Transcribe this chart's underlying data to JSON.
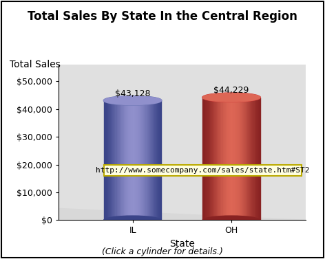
{
  "title": "Total Sales By State In the Central Region",
  "ylabel": "Total Sales",
  "xlabel": "State",
  "categories": [
    "IL",
    "OH"
  ],
  "values": [
    43128,
    44229
  ],
  "value_labels": [
    "$43,128",
    "$44,229"
  ],
  "bar_colors_main": [
    "#6672b0",
    "#cc3333"
  ],
  "bar_colors_light": [
    "#9090cc",
    "#dd6655"
  ],
  "bar_colors_dark": [
    "#3a4488",
    "#882222"
  ],
  "yticks": [
    0,
    10000,
    20000,
    30000,
    40000,
    50000
  ],
  "ytick_labels": [
    "$0",
    "$10,000",
    "$20,000",
    "$30,000",
    "$40,000",
    "$50,000"
  ],
  "ylim": [
    0,
    56000
  ],
  "tooltip_text": "http://www.somecompany.com/sales/state.htm#ST2",
  "footnote": "(Click a cylinder for details.)",
  "background_color": "#ffffff",
  "wall_color": "#cccccc",
  "title_fontsize": 12,
  "axis_label_fontsize": 10,
  "tick_fontsize": 9,
  "value_label_fontsize": 9,
  "footnote_fontsize": 9,
  "tooltip_fontsize": 8
}
